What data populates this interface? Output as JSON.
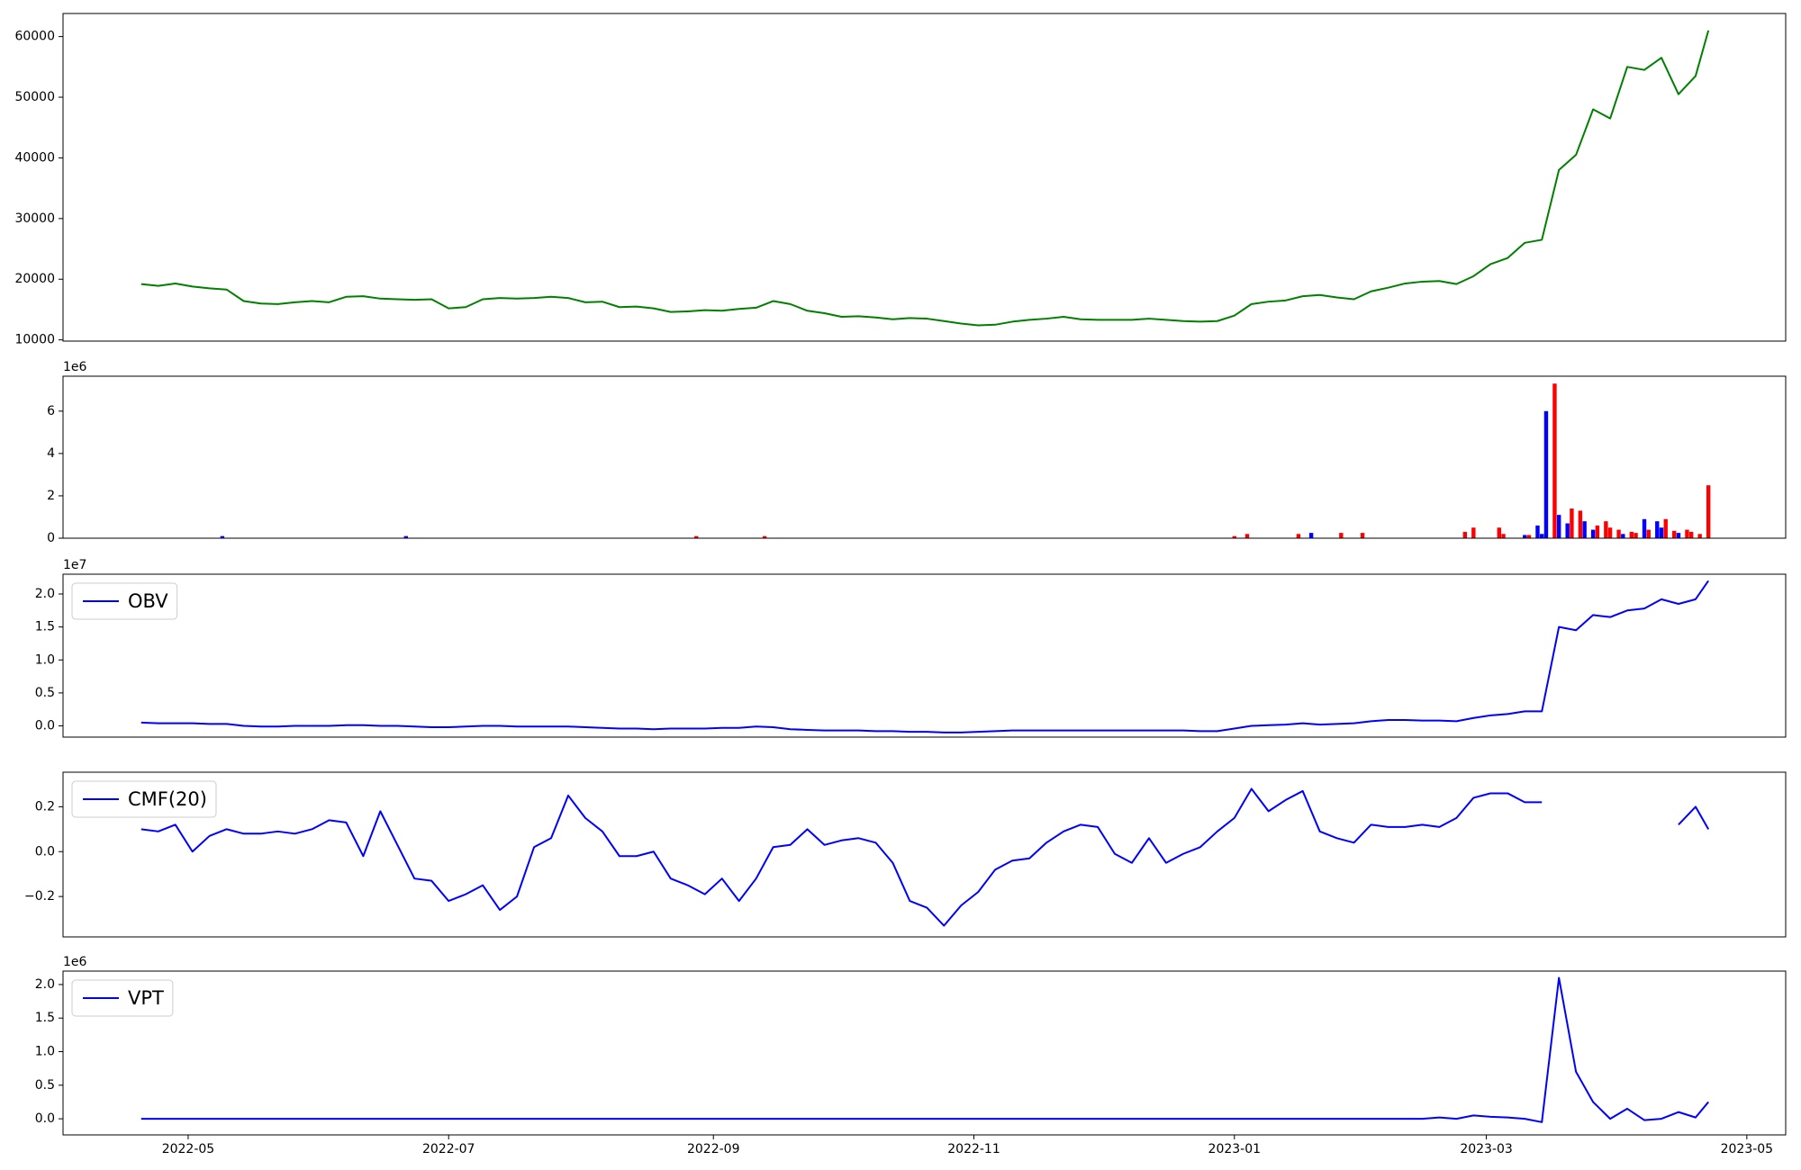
{
  "chart_data": [
    {
      "type": "line",
      "x": [
        19,
        23,
        27,
        31,
        35,
        39,
        43,
        47,
        51,
        55,
        59,
        63,
        67,
        71,
        75,
        79,
        83,
        87,
        91,
        95,
        99,
        103,
        107,
        111,
        115,
        119,
        123,
        127,
        131,
        135,
        139,
        143,
        147,
        151,
        155,
        159,
        163,
        167,
        171,
        175,
        179,
        183,
        187,
        191,
        195,
        199,
        203,
        207,
        211,
        215,
        219,
        223,
        227,
        231,
        235,
        239,
        243,
        247,
        251,
        255,
        259,
        263,
        267,
        271,
        275,
        279,
        283,
        287,
        291,
        295,
        299,
        303,
        307,
        311,
        315,
        319,
        323,
        327,
        331,
        335,
        339,
        343,
        347,
        351,
        355,
        359,
        363,
        367,
        371,
        375,
        379,
        383,
        386
      ],
      "series": [
        {
          "color": "#008000",
          "values": [
            19200,
            18900,
            19300,
            18800,
            18500,
            18300,
            16400,
            16000,
            15900,
            16200,
            16400,
            16200,
            17100,
            17200,
            16800,
            16700,
            16600,
            16700,
            15200,
            15400,
            16700,
            16900,
            16800,
            16900,
            17100,
            16900,
            16200,
            16300,
            15400,
            15500,
            15200,
            14600,
            14700,
            14900,
            14800,
            15100,
            15300,
            16400,
            15900,
            14800,
            14400,
            13800,
            13900,
            13700,
            13400,
            13600,
            13500,
            13100,
            12700,
            12400,
            12500,
            13000,
            13300,
            13500,
            13800,
            13400,
            13300,
            13300,
            13300,
            13500,
            13300,
            13100,
            13000,
            13100,
            14000,
            15900,
            16300,
            16500,
            17200,
            17400,
            17000,
            16700,
            18000,
            18600,
            19300,
            19600,
            19700,
            19200,
            20500,
            22500,
            23500,
            26000,
            26500,
            38000,
            40500,
            48000,
            46500,
            55000,
            54500,
            56500,
            50500,
            53500,
            61000
          ]
        }
      ],
      "xlim": [
        0.7,
        404.1
      ],
      "ylim": [
        9800,
        63800
      ],
      "yticks": [
        10000,
        20000,
        30000,
        40000,
        50000,
        60000
      ]
    },
    {
      "type": "bar",
      "offset_label": "1e6",
      "series": [
        {
          "color": "#0000ff",
          "x": [
            38,
            81,
            293,
            343,
            346,
            347,
            348,
            351,
            353,
            357,
            359,
            366,
            371,
            374,
            375,
            379
          ],
          "values": [
            0.1,
            0.1,
            0.25,
            0.15,
            0.6,
            0.2,
            6.0,
            1.1,
            0.7,
            0.8,
            0.4,
            0.2,
            0.9,
            0.8,
            0.5,
            0.25
          ]
        },
        {
          "color": "#ff0000",
          "x": [
            149,
            165,
            275,
            278,
            290,
            300,
            305,
            329,
            331,
            337,
            338,
            344,
            350,
            354,
            356,
            360,
            362,
            363,
            365,
            368,
            369,
            372,
            376,
            378,
            381,
            382,
            384,
            386
          ],
          "values": [
            0.1,
            0.1,
            0.1,
            0.2,
            0.2,
            0.25,
            0.25,
            0.3,
            0.5,
            0.5,
            0.2,
            0.15,
            7.3,
            1.4,
            1.3,
            0.6,
            0.8,
            0.5,
            0.4,
            0.3,
            0.25,
            0.4,
            0.9,
            0.35,
            0.4,
            0.3,
            0.2,
            2.5
          ]
        }
      ],
      "xlim": [
        0.7,
        404.1
      ],
      "ylim": [
        0,
        7.65
      ],
      "yticks": [
        0,
        2,
        4,
        6
      ]
    },
    {
      "type": "line",
      "offset_label": "1e7",
      "legend": "upper left",
      "x": [
        19,
        23,
        27,
        31,
        35,
        39,
        43,
        47,
        51,
        55,
        59,
        63,
        67,
        71,
        75,
        79,
        83,
        87,
        91,
        95,
        99,
        103,
        107,
        111,
        115,
        119,
        123,
        127,
        131,
        135,
        139,
        143,
        147,
        151,
        155,
        159,
        163,
        167,
        171,
        175,
        179,
        183,
        187,
        191,
        195,
        199,
        203,
        207,
        211,
        215,
        219,
        223,
        227,
        231,
        235,
        239,
        243,
        247,
        251,
        255,
        259,
        263,
        267,
        271,
        275,
        279,
        283,
        287,
        291,
        295,
        299,
        303,
        307,
        311,
        315,
        319,
        323,
        327,
        331,
        335,
        339,
        343,
        347,
        351,
        355,
        359,
        363,
        367,
        371,
        375,
        379,
        383,
        386
      ],
      "series": [
        {
          "name": "OBV",
          "color": "#0000ff",
          "values": [
            0.05,
            0.04,
            0.04,
            0.04,
            0.03,
            0.03,
            0.0,
            -0.01,
            -0.01,
            0.0,
            0.0,
            0.0,
            0.01,
            0.01,
            0.0,
            0.0,
            -0.01,
            -0.02,
            -0.02,
            -0.01,
            0.0,
            0.0,
            -0.01,
            -0.01,
            -0.01,
            -0.01,
            -0.02,
            -0.03,
            -0.04,
            -0.04,
            -0.05,
            -0.04,
            -0.04,
            -0.04,
            -0.03,
            -0.03,
            -0.01,
            -0.02,
            -0.05,
            -0.06,
            -0.07,
            -0.07,
            -0.07,
            -0.08,
            -0.08,
            -0.09,
            -0.09,
            -0.1,
            -0.1,
            -0.09,
            -0.08,
            -0.07,
            -0.07,
            -0.07,
            -0.07,
            -0.07,
            -0.07,
            -0.07,
            -0.07,
            -0.07,
            -0.07,
            -0.07,
            -0.08,
            -0.08,
            -0.04,
            0.0,
            0.01,
            0.02,
            0.04,
            0.02,
            0.03,
            0.04,
            0.07,
            0.09,
            0.09,
            0.08,
            0.08,
            0.07,
            0.12,
            0.16,
            0.18,
            0.22,
            0.22,
            1.5,
            1.45,
            1.68,
            1.65,
            1.75,
            1.78,
            1.92,
            1.85,
            1.92,
            2.2
          ]
        }
      ],
      "xlim": [
        0.7,
        404.1
      ],
      "ylim": [
        -0.17,
        2.3
      ],
      "yticks": [
        {
          "value": 0,
          "label": "0.0"
        },
        0.5,
        {
          "value": 1,
          "label": "1.0"
        },
        1.5,
        {
          "value": 2,
          "label": "2.0"
        }
      ]
    },
    {
      "type": "line",
      "legend": "upper left",
      "x": [
        19,
        23,
        27,
        31,
        35,
        39,
        43,
        47,
        51,
        55,
        59,
        63,
        67,
        71,
        75,
        79,
        83,
        87,
        91,
        95,
        99,
        103,
        107,
        111,
        115,
        119,
        123,
        127,
        131,
        135,
        139,
        143,
        147,
        151,
        155,
        159,
        163,
        167,
        171,
        175,
        179,
        183,
        187,
        191,
        195,
        199,
        203,
        207,
        211,
        215,
        219,
        223,
        227,
        231,
        235,
        239,
        243,
        247,
        251,
        255,
        259,
        263,
        267,
        271,
        275,
        279,
        283,
        287,
        291,
        295,
        299,
        303,
        307,
        311,
        315,
        319,
        323,
        327,
        331,
        335,
        339,
        343,
        347,
        351,
        355,
        359,
        363,
        367,
        371,
        375,
        379,
        383,
        386
      ],
      "series": [
        {
          "name": "CMF(20)",
          "color": "#0000ff",
          "values": [
            0.1,
            0.09,
            0.12,
            0.0,
            0.07,
            0.1,
            0.08,
            0.08,
            0.09,
            0.08,
            0.1,
            0.14,
            0.13,
            -0.02,
            0.18,
            0.03,
            -0.12,
            -0.13,
            -0.22,
            -0.19,
            -0.15,
            -0.26,
            -0.2,
            0.02,
            0.06,
            0.25,
            0.15,
            0.09,
            -0.02,
            -0.02,
            0.0,
            -0.12,
            -0.15,
            -0.19,
            -0.12,
            -0.22,
            -0.12,
            0.02,
            0.03,
            0.1,
            0.03,
            0.05,
            0.06,
            0.04,
            -0.05,
            -0.22,
            -0.25,
            -0.33,
            -0.24,
            -0.18,
            -0.08,
            -0.04,
            -0.03,
            0.04,
            0.09,
            0.12,
            0.11,
            -0.01,
            -0.05,
            0.06,
            -0.05,
            -0.01,
            0.02,
            0.09,
            0.15,
            0.28,
            0.18,
            0.23,
            0.27,
            0.09,
            0.06,
            0.04,
            0.12,
            0.11,
            0.11,
            0.12,
            0.11,
            0.15,
            0.24,
            0.26,
            0.26,
            0.22,
            0.22,
            null,
            null,
            null,
            null,
            null,
            null,
            null,
            0.12,
            0.2,
            0.1
          ]
        }
      ],
      "xlim": [
        0.7,
        404.1
      ],
      "ylim": [
        -0.38,
        0.354
      ],
      "yticks": [
        {
          "value": -0.2,
          "label": "−0.2"
        },
        {
          "value": 0,
          "label": "0.0"
        },
        0.2
      ]
    },
    {
      "type": "line",
      "offset_label": "1e6",
      "legend": "upper left",
      "x": [
        19,
        23,
        27,
        31,
        35,
        39,
        43,
        47,
        51,
        55,
        59,
        63,
        67,
        71,
        75,
        79,
        83,
        87,
        91,
        95,
        99,
        103,
        107,
        111,
        115,
        119,
        123,
        127,
        131,
        135,
        139,
        143,
        147,
        151,
        155,
        159,
        163,
        167,
        171,
        175,
        179,
        183,
        187,
        191,
        195,
        199,
        203,
        207,
        211,
        215,
        219,
        223,
        227,
        231,
        235,
        239,
        243,
        247,
        251,
        255,
        259,
        263,
        267,
        271,
        275,
        279,
        283,
        287,
        291,
        295,
        299,
        303,
        307,
        311,
        315,
        319,
        323,
        327,
        331,
        335,
        339,
        343,
        347,
        351,
        355,
        359,
        363,
        367,
        371,
        375,
        379,
        383,
        386
      ],
      "series": [
        {
          "name": "VPT",
          "color": "#0000ff",
          "values": [
            0,
            0,
            0,
            0,
            0,
            0,
            0,
            0,
            0,
            0,
            0,
            0,
            0,
            0,
            0,
            0,
            0,
            0,
            0,
            0,
            0,
            0,
            0,
            0,
            0,
            0,
            0,
            0,
            0,
            0,
            0,
            0,
            0,
            0,
            0,
            0,
            0,
            0,
            0,
            0,
            0,
            0,
            0,
            0,
            0,
            0,
            0,
            0,
            0,
            0,
            0,
            0,
            0,
            0,
            0,
            0,
            0,
            0,
            0,
            0,
            0,
            0,
            0,
            0,
            0,
            0,
            0,
            0,
            0,
            0,
            0,
            0,
            0,
            0,
            0,
            0,
            0.02,
            0.0,
            0.05,
            0.03,
            0.02,
            0.0,
            -0.05,
            2.1,
            0.7,
            0.25,
            0.0,
            0.15,
            -0.02,
            0.0,
            0.1,
            0.02,
            0.25
          ]
        }
      ],
      "xlim": [
        0.7,
        404.1
      ],
      "ylim": [
        -0.24,
        2.2
      ],
      "yticks": [
        {
          "value": 0,
          "label": "0.0"
        },
        0.5,
        {
          "value": 1,
          "label": "1.0"
        },
        1.5,
        {
          "value": 2,
          "label": "2.0"
        }
      ],
      "xticks": [
        {
          "value": 30,
          "label": "2022-05"
        },
        {
          "value": 91,
          "label": "2022-07"
        },
        {
          "value": 153,
          "label": "2022-09"
        },
        {
          "value": 214,
          "label": "2022-11"
        },
        {
          "value": 275,
          "label": "2023-01"
        },
        {
          "value": 334,
          "label": "2023-03"
        },
        {
          "value": 395,
          "label": "2023-05"
        }
      ]
    }
  ]
}
